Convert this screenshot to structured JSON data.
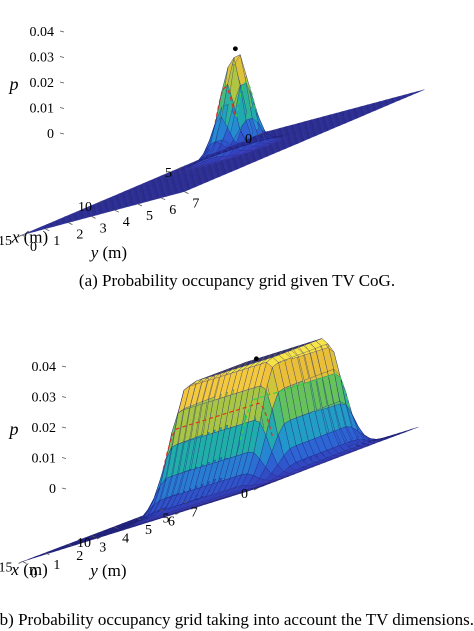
{
  "colors": {
    "floor": "#3d3fc2",
    "ramp": [
      "#3338b8",
      "#2e62d4",
      "#2495d0",
      "#21b0a6",
      "#62c25e",
      "#c7c63a",
      "#f1be3a",
      "#f7ee4d"
    ],
    "grid_line": "#1d1f70",
    "cog_edge": "#e0302a",
    "dims_edge": "#35d04a",
    "peak_marker": "#000000"
  },
  "chart_data": [
    {
      "type": "surface",
      "panel": "a",
      "caption": "(a) Probability occupancy grid given TV CoG.",
      "xlabel": "x (m)",
      "ylabel": "y (m)",
      "zlabel": "p",
      "x_ticks": [
        "0",
        "5",
        "10",
        "15"
      ],
      "y_ticks": [
        "0",
        "1",
        "2",
        "3",
        "4",
        "5",
        "6",
        "7"
      ],
      "z_ticks": [
        "0",
        "0.01",
        "0.02",
        "0.03",
        "0.04"
      ],
      "xlim": [
        0,
        15
      ],
      "ylim": [
        0,
        7
      ],
      "zlim": [
        0,
        0.04
      ],
      "peak": {
        "x": 5,
        "y": 2.3,
        "p": 0.04
      },
      "sigma_x": 0.55,
      "sigma_y": 0.5,
      "plateau_half_x": 0,
      "plateau_half_y": 0
    },
    {
      "type": "surface",
      "panel": "b",
      "caption": "(b) Probability occupancy grid taking into account the TV dimensions.",
      "xlabel": "x (m)",
      "ylabel": "y (m)",
      "zlabel": "p",
      "x_ticks": [
        "0",
        "5",
        "10",
        "15"
      ],
      "y_ticks": [
        "0",
        "1",
        "2",
        "3",
        "4",
        "5",
        "6",
        "7"
      ],
      "z_ticks": [
        "0",
        "0.01",
        "0.02",
        "0.03",
        "0.04"
      ],
      "xlim": [
        0,
        15
      ],
      "ylim": [
        0,
        7
      ],
      "zlim": [
        0,
        0.04
      ],
      "peak": {
        "x": 5.5,
        "y": 3.7,
        "p": 0.04
      },
      "sigma_x": 0.8,
      "sigma_y": 0.6,
      "plateau_half_x": 2.6,
      "plateau_half_y": 1.15
    }
  ]
}
